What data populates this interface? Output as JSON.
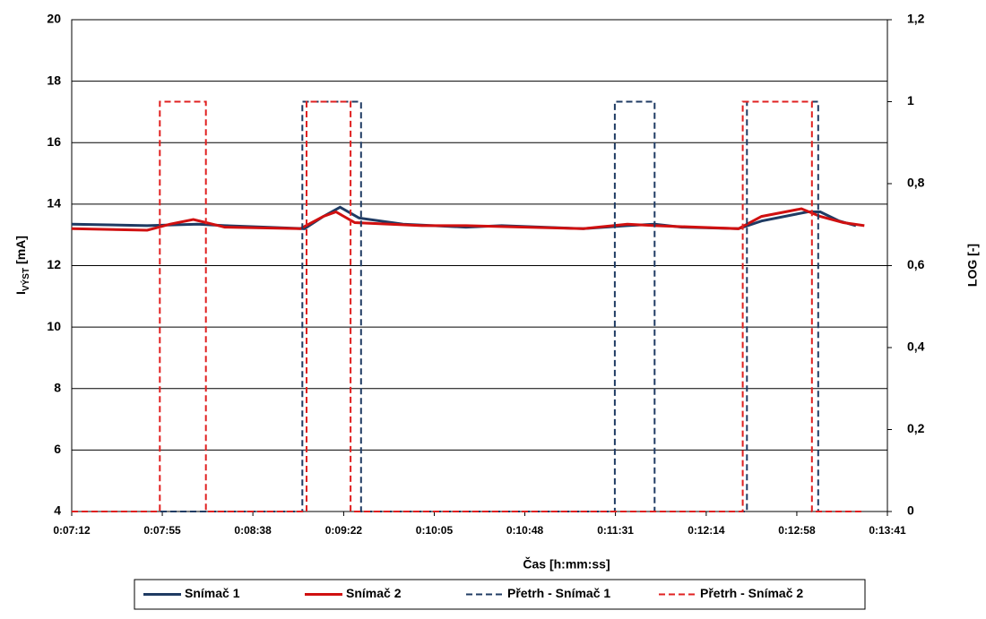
{
  "chart_data": {
    "type": "line",
    "x_label": "Čas [h:mm:ss]",
    "y_label": [
      "I",
      "VÝST",
      "[mA]"
    ],
    "y2_label": "LOG [-]",
    "xlim": [
      432,
      821
    ],
    "xticks": [
      {
        "value": 432,
        "label": "0:07:12"
      },
      {
        "value": 475.2,
        "label": "0:07:55"
      },
      {
        "value": 518.4,
        "label": "0:08:38"
      },
      {
        "value": 561.7,
        "label": "0:09:22"
      },
      {
        "value": 604.9,
        "label": "0:10:05"
      },
      {
        "value": 648.1,
        "label": "0:10:48"
      },
      {
        "value": 691.3,
        "label": "0:11:31"
      },
      {
        "value": 734.6,
        "label": "0:12:14"
      },
      {
        "value": 777.8,
        "label": "0:12:58"
      },
      {
        "value": 821,
        "label": "0:13:41"
      }
    ],
    "ylim": [
      4,
      20
    ],
    "yticks": [
      4,
      6,
      8,
      10,
      12,
      14,
      16,
      18,
      20
    ],
    "y2lim": [
      0,
      1.2
    ],
    "y2ticks": [
      0,
      {
        "value": 0.2,
        "label": "0,2"
      },
      {
        "value": 0.4,
        "label": "0,4"
      },
      {
        "value": 0.6,
        "label": "0,6"
      },
      {
        "value": 0.8,
        "label": "0,8"
      },
      1,
      {
        "value": 1.2,
        "label": "1,2"
      }
    ],
    "grid": true,
    "legend": "bottom",
    "series": [
      {
        "name": "Snímač 1",
        "color": "#1f3b63",
        "dashed": false,
        "x": [
          432,
          468,
          492,
          505,
          543,
          552,
          560,
          569,
          590,
          620,
          637,
          676,
          697,
          710,
          723,
          750,
          761,
          783,
          789,
          798,
          806
        ],
        "values": [
          13.35,
          13.3,
          13.35,
          13.3,
          13.2,
          13.6,
          13.9,
          13.55,
          13.35,
          13.25,
          13.3,
          13.2,
          13.3,
          13.35,
          13.25,
          13.2,
          13.45,
          13.75,
          13.75,
          13.45,
          13.3
        ]
      },
      {
        "name": "Snímač 2",
        "color": "#d01010",
        "dashed": false,
        "x": [
          432,
          468,
          479,
          490,
          505,
          541,
          552,
          558,
          567,
          599,
          620,
          676,
          697,
          710,
          750,
          761,
          780,
          789,
          800,
          810
        ],
        "values": [
          13.2,
          13.15,
          13.35,
          13.5,
          13.25,
          13.2,
          13.6,
          13.75,
          13.4,
          13.3,
          13.3,
          13.2,
          13.35,
          13.3,
          13.2,
          13.6,
          13.85,
          13.6,
          13.4,
          13.3
        ]
      },
      {
        "name": "Přetrh - Snímač 1",
        "color": "#1f3b63",
        "dashed": true,
        "axis": "y2",
        "x": [
          432,
          542,
          542,
          570,
          570,
          691,
          691,
          710,
          710,
          754,
          754,
          788,
          788,
          806
        ],
        "values": [
          0,
          0,
          1,
          1,
          0,
          0,
          1,
          1,
          0,
          0,
          1,
          1,
          0,
          0
        ]
      },
      {
        "name": "Přetrh - Snímač 2",
        "color": "#e02020",
        "dashed": true,
        "axis": "y2",
        "x": [
          432,
          474,
          474,
          496,
          496,
          544,
          544,
          565,
          565,
          752,
          752,
          785,
          785,
          810
        ],
        "values": [
          0,
          0,
          1,
          1,
          0,
          0,
          1,
          1,
          0,
          0,
          1,
          1,
          0,
          0
        ]
      }
    ]
  }
}
